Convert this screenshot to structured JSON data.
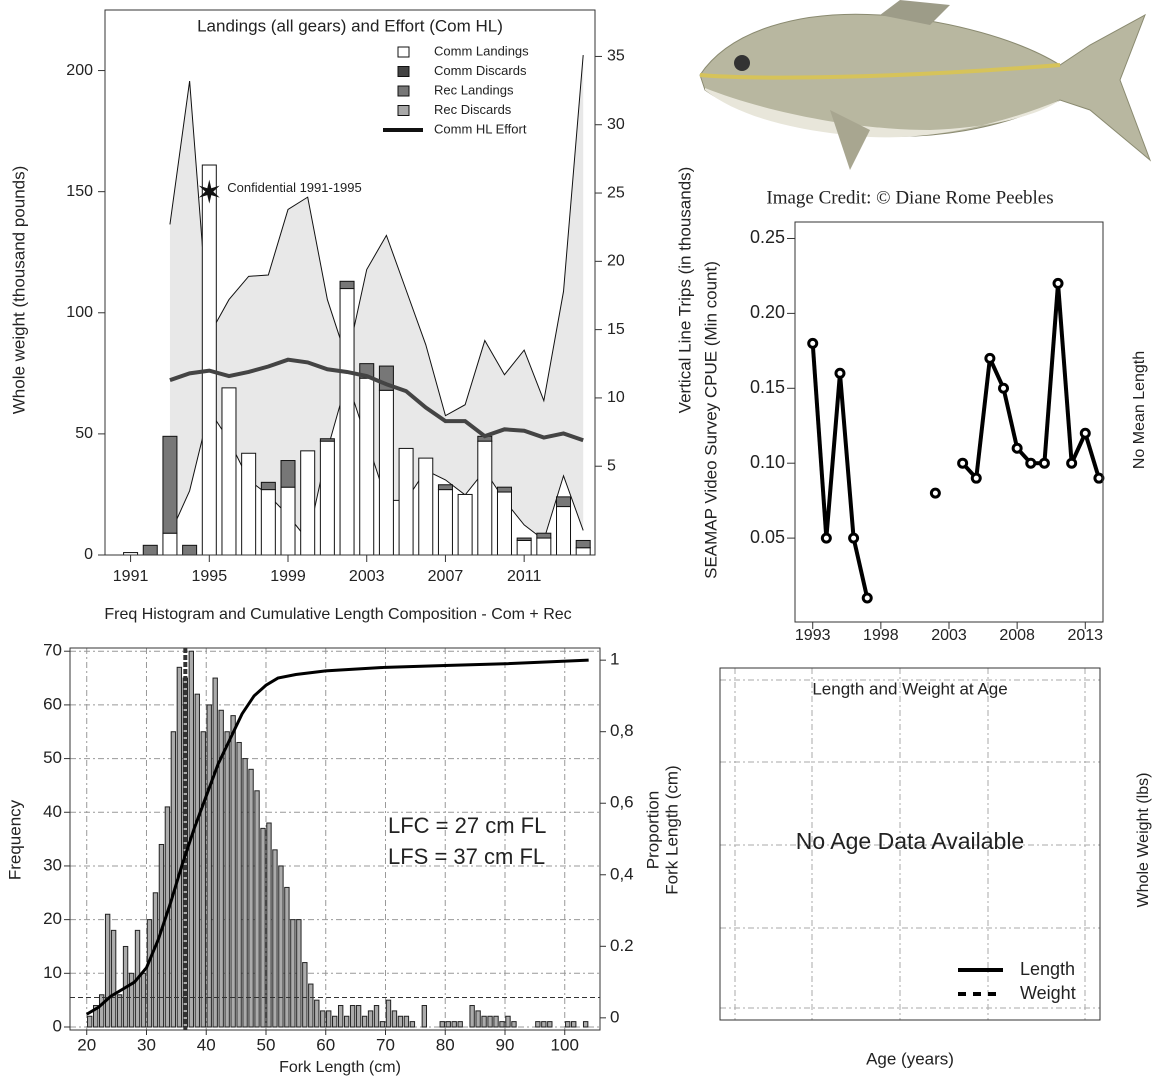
{
  "image_credit": "Image Credit: © Diane Rome Peebles",
  "chart_data": [
    {
      "type": "bar",
      "title": "Landings (all gears) and Effort (Com HL)",
      "ylabel": "Whole weight (thousand pounds)",
      "y2label": "Vertical Line Trips (in thousands)",
      "x": [
        1991,
        1992,
        1993,
        1994,
        1995,
        1996,
        1997,
        1998,
        1999,
        2000,
        2001,
        2002,
        2003,
        2004,
        2005,
        2006,
        2007,
        2008,
        2009,
        2010,
        2011,
        2012,
        2013,
        2014
      ],
      "xlim": [
        1989.7,
        2014.6
      ],
      "xticks": [
        1991,
        1995,
        1999,
        2003,
        2007,
        2011
      ],
      "ylim": [
        0,
        225
      ],
      "yticks": [
        0,
        50,
        100,
        150,
        200
      ],
      "y2lim": [
        -1.5,
        38.4
      ],
      "y2ticks": [
        5,
        10,
        15,
        20,
        25,
        30,
        35
      ],
      "legend": "top-right",
      "series": [
        {
          "name": "Comm Landings",
          "color": "#ffffff",
          "values": [
            1,
            0,
            9,
            0,
            161,
            69,
            42,
            27,
            28,
            43,
            47,
            110,
            73,
            68,
            44,
            40,
            27,
            25,
            47,
            26,
            6,
            7,
            20,
            3
          ]
        },
        {
          "name": "Comm Discards",
          "color": "#444444",
          "values": [
            0,
            0,
            0,
            0,
            0,
            0,
            0,
            0,
            0,
            0,
            0,
            0,
            0,
            0,
            0,
            0,
            0,
            0,
            0,
            0,
            0,
            0,
            0,
            0
          ]
        },
        {
          "name": "Rec Landings",
          "color": "#777777",
          "values": [
            0,
            4,
            40,
            4,
            0,
            0,
            0,
            3,
            11,
            0,
            1,
            3,
            6,
            10,
            0,
            0,
            2,
            0,
            2,
            2,
            1,
            2,
            4,
            3
          ]
        },
        {
          "name": "Rec Discards",
          "color": "#a8a8a8",
          "values": [
            0,
            0,
            0,
            0,
            0,
            0,
            0,
            0,
            0,
            0,
            0,
            0,
            0,
            0,
            0,
            0,
            0,
            0,
            0,
            0,
            0,
            0,
            0,
            0
          ]
        },
        {
          "name": "Comm HL Effort",
          "type": "line",
          "axis": "y2",
          "color": "#444444",
          "values": [
            null,
            null,
            11.3,
            11.8,
            12,
            11.6,
            11.9,
            12.3,
            12.8,
            12.6,
            12.1,
            11.9,
            11.6,
            11.0,
            10.5,
            9.3,
            8.3,
            8.3,
            7.2,
            7.7,
            7.6,
            7.1,
            7.4,
            6.9
          ]
        }
      ],
      "effort_band": {
        "color": "#e8e8e8",
        "upper": [
          null,
          null,
          22.7,
          33.2,
          14.6,
          17.2,
          18.9,
          19.0,
          23.8,
          24.7,
          17.2,
          12.8,
          19.4,
          21.9,
          17.9,
          13.9,
          8.7,
          9.5,
          14.2,
          11.7,
          13.5,
          9.8,
          17.8,
          35.1
        ],
        "lower": [
          null,
          null,
          0,
          3.2,
          9.1,
          6.9,
          4.0,
          2.9,
          1.4,
          -0.4,
          6.2,
          11.3,
          6.9,
          2.5,
          2.5,
          4.7,
          4.0,
          2.9,
          4.7,
          2.5,
          0.7,
          -0.4,
          4.3,
          0.3
        ]
      },
      "annotation": {
        "text": "Confidential 1991-1995",
        "x": 1995,
        "y": 150
      }
    },
    {
      "type": "line",
      "ylabel": "SEAMAP Video Survey CPUE (Min count)",
      "y2label": "No Mean Length",
      "x": [
        1993,
        1994,
        1995,
        1996,
        1997,
        2002,
        2004,
        2005,
        2006,
        2007,
        2008,
        2009,
        2010,
        2011,
        2012,
        2013,
        2014
      ],
      "values": [
        0.18,
        0.05,
        0.16,
        0.05,
        0.01,
        0.08,
        0.1,
        0.09,
        0.17,
        0.15,
        0.11,
        0.1,
        0.1,
        0.22,
        0.1,
        0.12,
        0.09
      ],
      "color": "#000000",
      "xlim": [
        1991.7,
        2014.3
      ],
      "xticks": [
        1993,
        1998,
        2003,
        2008,
        2013
      ],
      "ylim": [
        -0.006,
        0.261
      ],
      "yticks": [
        0.05,
        {
          "value": 0.1,
          "label": "0.10"
        },
        0.15,
        {
          "value": 0.2,
          "label": "0.20"
        },
        0.25
      ]
    },
    {
      "type": "histogram",
      "title": "Freq Histogram and Cumulative Length Composition - Com + Rec",
      "xlabel": "Fork Length (cm)",
      "ylabel": "Frequency",
      "y2label": "Proportion",
      "y2sublabel": "Fork Length (cm)",
      "bins": [
        20,
        21,
        22,
        23,
        24,
        25,
        26,
        27,
        28,
        29,
        30,
        31,
        32,
        33,
        34,
        35,
        36,
        37,
        38,
        39,
        40,
        41,
        42,
        43,
        44,
        45,
        46,
        47,
        48,
        49,
        50,
        51,
        52,
        53,
        54,
        55,
        56,
        57,
        58,
        59,
        60,
        61,
        62,
        63,
        64,
        65,
        66,
        67,
        68,
        69,
        70,
        71,
        72,
        73,
        74,
        75,
        76,
        77,
        78,
        79,
        80,
        81,
        82,
        83,
        84,
        85,
        86,
        87,
        88,
        89,
        90,
        91,
        92,
        93,
        94,
        95,
        96,
        97,
        98,
        99,
        100,
        101,
        102,
        103,
        104,
        105
      ],
      "counts": [
        2,
        4,
        6,
        21,
        18,
        6,
        15,
        10,
        18,
        10,
        20,
        25,
        34,
        41,
        55,
        67,
        65,
        70,
        62,
        55,
        60,
        65,
        59,
        55,
        58,
        53,
        50,
        48,
        44,
        37,
        38,
        33,
        30,
        26,
        20,
        20,
        12,
        8,
        5,
        3,
        3,
        2,
        4,
        2,
        4,
        4,
        2,
        3,
        4,
        1,
        5,
        3,
        2,
        2,
        1,
        0,
        4,
        0,
        0,
        1,
        1,
        1,
        1,
        0,
        4,
        3,
        2,
        2,
        2,
        1,
        2,
        1,
        0,
        0,
        0,
        1,
        1,
        1,
        0,
        0,
        1,
        1,
        0,
        1,
        0
      ],
      "color": "#ababab",
      "cumulative": {
        "axis": "y2",
        "color": "#000000",
        "x": [
          20,
          22,
          24,
          26,
          28,
          30,
          32,
          34,
          36,
          38,
          40,
          42,
          44,
          46,
          48,
          50,
          52,
          55,
          60,
          70,
          80,
          90,
          104
        ],
        "values": [
          0.01,
          0.03,
          0.06,
          0.08,
          0.1,
          0.14,
          0.22,
          0.32,
          0.43,
          0.53,
          0.62,
          0.71,
          0.78,
          0.85,
          0.9,
          0.93,
          0.95,
          0.96,
          0.97,
          0.98,
          0.985,
          0.99,
          1.0
        ]
      },
      "xlim": [
        17.2,
        105.9
      ],
      "xticks": [
        20,
        30,
        40,
        50,
        60,
        70,
        80,
        90,
        100
      ],
      "ylim": [
        -0.56,
        70.6
      ],
      "yticks": [
        0,
        10,
        20,
        30,
        40,
        50,
        60,
        70
      ],
      "y2lim": [
        -0.034,
        1.034
      ],
      "y2ticks": [
        0,
        0.2,
        {
          "value": 0.4,
          "label": "0,4"
        },
        {
          "value": 0.6,
          "label": "0,6"
        },
        {
          "value": 0.8,
          "label": "0,8"
        },
        1
      ],
      "grid": true,
      "vline_x": 36.5,
      "hline_y": 5.5,
      "annotations": [
        "LFC = 27 cm FL",
        "LFS = 37 cm FL"
      ]
    },
    {
      "type": "empty",
      "title": "Length and Weight at Age",
      "message": "No Age Data Available",
      "xlabel": "Age (years)",
      "y2label": "Whole Weight (lbs)",
      "grid": true,
      "x": [],
      "series": [
        {
          "name": "Length",
          "dash": false,
          "values": []
        },
        {
          "name": "Weight",
          "dash": true,
          "values": []
        }
      ]
    }
  ]
}
